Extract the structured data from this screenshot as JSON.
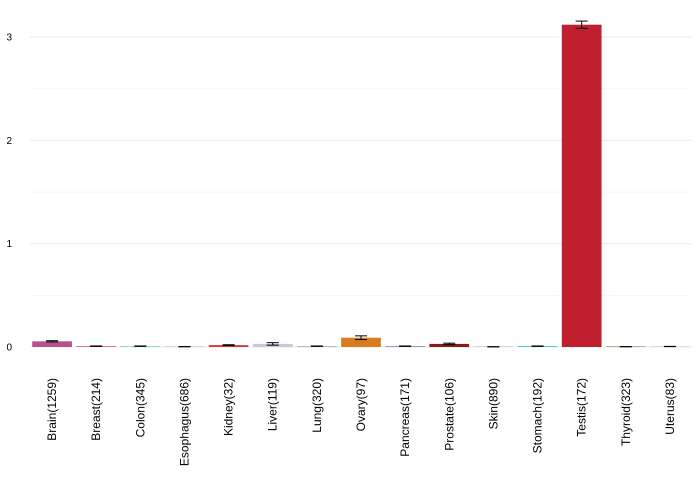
{
  "chart_data": {
    "type": "bar",
    "categories": [
      "Brain(1259)",
      "Breast(214)",
      "Colon(345)",
      "Esophagus(686)",
      "Kidney(32)",
      "Liver(119)",
      "Lung(320)",
      "Ovary(97)",
      "Pancreas(171)",
      "Prostate(106)",
      "Skin(890)",
      "Stomach(192)",
      "Testis(172)",
      "Thyroid(323)",
      "Uterus(83)"
    ],
    "values": [
      0.055,
      0.008,
      0.008,
      0.003,
      0.018,
      0.03,
      0.008,
      0.09,
      0.008,
      0.03,
      0.002,
      0.008,
      3.12,
      0.003,
      0.005
    ],
    "errors": [
      0.006,
      0.002,
      0.002,
      0.001,
      0.004,
      0.012,
      0.002,
      0.018,
      0.002,
      0.007,
      0.001,
      0.002,
      0.035,
      0.001,
      0.001
    ],
    "colors": [
      "#b5528e",
      "#e0587a",
      "#7ad2d6",
      "#b0d8c8",
      "#d23939",
      "#c7c7dd",
      "#a8a8b8",
      "#d97b1f",
      "#7e88b5",
      "#8b1a1a",
      "#cfcfcf",
      "#3bb7d4",
      "#c01f30",
      "#8fae6a",
      "#f2c8c0"
    ],
    "title": "",
    "xlabel": "",
    "ylabel": "",
    "ylim": [
      0,
      3.2
    ],
    "yticks": [
      0,
      1,
      2,
      3
    ],
    "grid": true,
    "legend": "none"
  }
}
